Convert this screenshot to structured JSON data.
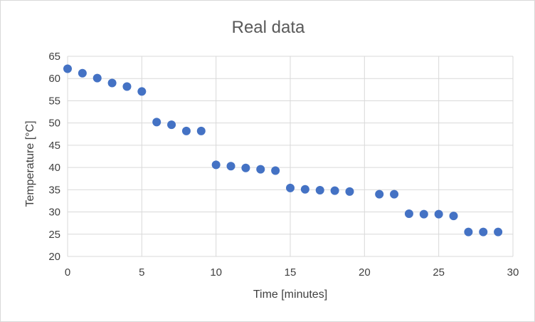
{
  "chart_data": {
    "type": "scatter",
    "title": "Real data",
    "xlabel": "Time [minutes]",
    "ylabel": "Temperature [°C]",
    "xlim": [
      0,
      30
    ],
    "ylim": [
      20,
      65
    ],
    "xticks": [
      "0",
      "5",
      "10",
      "15",
      "20",
      "25",
      "30"
    ],
    "yticks": [
      "20",
      "25",
      "30",
      "35",
      "40",
      "45",
      "50",
      "55",
      "60",
      "65"
    ],
    "grid": true,
    "legend": "none",
    "marker_color": "#4472C4",
    "points": [
      {
        "x": 0,
        "y": 62.2
      },
      {
        "x": 1,
        "y": 61.2
      },
      {
        "x": 2,
        "y": 60.1
      },
      {
        "x": 3,
        "y": 59.0
      },
      {
        "x": 4,
        "y": 58.2
      },
      {
        "x": 5,
        "y": 57.1
      },
      {
        "x": 6,
        "y": 50.2
      },
      {
        "x": 7,
        "y": 49.6
      },
      {
        "x": 8,
        "y": 48.2
      },
      {
        "x": 9,
        "y": 48.2
      },
      {
        "x": 10,
        "y": 40.6
      },
      {
        "x": 11,
        "y": 40.3
      },
      {
        "x": 12,
        "y": 39.9
      },
      {
        "x": 13,
        "y": 39.6
      },
      {
        "x": 14,
        "y": 39.3
      },
      {
        "x": 15,
        "y": 35.4
      },
      {
        "x": 16,
        "y": 35.1
      },
      {
        "x": 17,
        "y": 34.9
      },
      {
        "x": 18,
        "y": 34.8
      },
      {
        "x": 19,
        "y": 34.6
      },
      {
        "x": 21,
        "y": 34.0
      },
      {
        "x": 22,
        "y": 34.0
      },
      {
        "x": 23,
        "y": 29.6
      },
      {
        "x": 24,
        "y": 29.5
      },
      {
        "x": 25,
        "y": 29.5
      },
      {
        "x": 26,
        "y": 29.1
      },
      {
        "x": 27,
        "y": 25.5
      },
      {
        "x": 28,
        "y": 25.5
      },
      {
        "x": 29,
        "y": 25.5
      }
    ]
  }
}
